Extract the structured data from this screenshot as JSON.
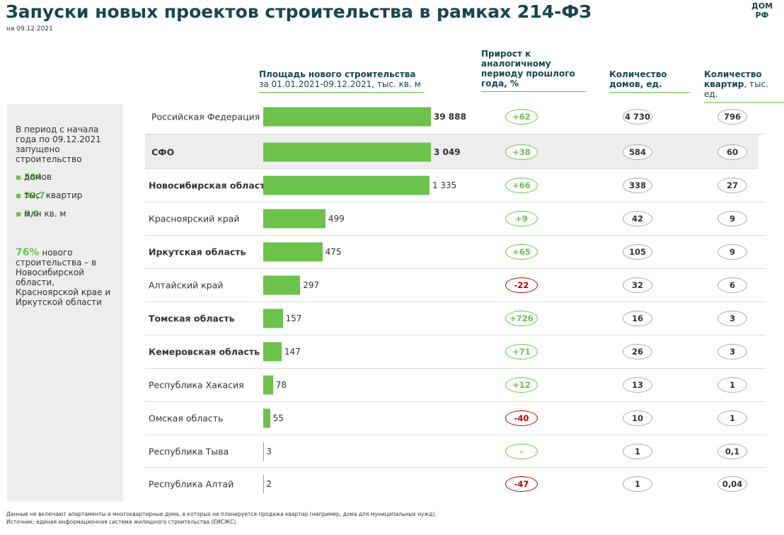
{
  "header": {
    "title": "Запуски новых проектов строительства в рамках 214-ФЗ",
    "date": "на 09.12.2021",
    "logo_top": "ДОМ",
    "logo_bottom": "РФ"
  },
  "sidebar": {
    "intro": "В период с начала года по 09.12.2021 запущено строительство",
    "bullets": [
      {
        "value": "584",
        "unit": "домов"
      },
      {
        "value": "59,7",
        "unit": "тыс. квартир"
      },
      {
        "value": "3,0",
        "unit": "млн кв. м"
      }
    ],
    "share": {
      "value": "76%",
      "text": "нового строительства – в Новосибирской области, Красноярской крае и Иркутской области"
    }
  },
  "columns": {
    "area_title": "Площадь нового строительства",
    "area_sub": "за 01.01.2021-09.12.2021, тыс. кв. м",
    "growth": "Прирост к аналогичному периоду прошлого года, %",
    "houses": "Количество домов, ед.",
    "flats_bold": "Количество квартир",
    "flats_rest": ", тыс. ед."
  },
  "table": {
    "color": "#6cc24a",
    "rows": [
      {
        "name": "Российская Федерация",
        "area": 39888,
        "area_label": "39 888",
        "growth": "+62",
        "houses": "4 730",
        "flats": "796",
        "bold": false,
        "highlight": false
      },
      {
        "name": "СФО",
        "area": 3049,
        "area_label": "3 049",
        "growth": "+38",
        "houses": "584",
        "flats": "60",
        "bold": true,
        "highlight": true
      },
      {
        "name": "Новосибирская область",
        "area": 1335,
        "area_label": "1 335",
        "growth": "+66",
        "houses": "338",
        "flats": "27",
        "bold": true,
        "highlight": false
      },
      {
        "name": "Красноярский край",
        "area": 499,
        "area_label": "499",
        "growth": "+9",
        "houses": "42",
        "flats": "9",
        "bold": false,
        "highlight": false
      },
      {
        "name": "Иркутская область",
        "area": 475,
        "area_label": "475",
        "growth": "+65",
        "houses": "105",
        "flats": "9",
        "bold": true,
        "highlight": false
      },
      {
        "name": "Алтайский край",
        "area": 297,
        "area_label": "297",
        "growth": "-22",
        "houses": "32",
        "flats": "6",
        "bold": false,
        "highlight": false
      },
      {
        "name": "Томская область",
        "area": 157,
        "area_label": "157",
        "growth": "+726",
        "houses": "16",
        "flats": "3",
        "bold": true,
        "highlight": false
      },
      {
        "name": "Кемеровская область",
        "area": 147,
        "area_label": "147",
        "growth": "+71",
        "houses": "26",
        "flats": "3",
        "bold": true,
        "highlight": false
      },
      {
        "name": "Республика Хакасия",
        "area": 78,
        "area_label": "78",
        "growth": "+12",
        "houses": "13",
        "flats": "1",
        "bold": false,
        "highlight": false
      },
      {
        "name": "Омская область",
        "area": 55,
        "area_label": "55",
        "growth": "-40",
        "houses": "10",
        "flats": "1",
        "bold": false,
        "highlight": false
      },
      {
        "name": "Республика Тыва",
        "area": 3,
        "area_label": "3",
        "growth": "-",
        "houses": "1",
        "flats": "0,1",
        "bold": false,
        "highlight": false
      },
      {
        "name": "Республика Алтай",
        "area": 2,
        "area_label": "2",
        "growth": "-47",
        "houses": "1",
        "flats": "0,04",
        "bold": false,
        "highlight": false
      }
    ]
  },
  "footer": {
    "note": "Данные не включают апартаменты и многоквартирные дома, в которых не планируется продажа квартир (например, дома для муниципальных нужд).",
    "source": "Источник: единая информационная система жилищного строительства (ЕИСЖС)."
  }
}
